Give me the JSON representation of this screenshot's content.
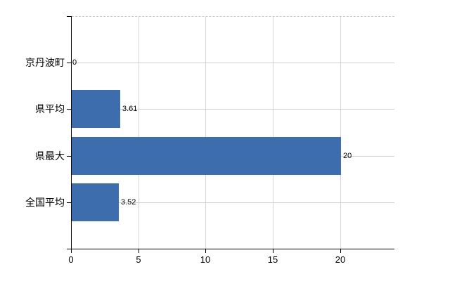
{
  "chart_data": {
    "type": "bar",
    "orientation": "horizontal",
    "title": "",
    "xlabel": "",
    "ylabel": "",
    "categories": [
      "京丹波町",
      "県平均",
      "県最大",
      "全国平均"
    ],
    "values": [
      0,
      3.61,
      20,
      3.52
    ],
    "value_labels": [
      "0",
      "3.61",
      "20",
      "3.52"
    ],
    "x_ticks": [
      0,
      5,
      10,
      15,
      20
    ],
    "x_tick_labels": [
      "0",
      "5",
      "10",
      "15",
      "20"
    ],
    "xlim": [
      0,
      24
    ],
    "grid": true,
    "legend": false,
    "colors": {
      "bar": "#3d6dac",
      "h_gridline": "#ccd4cb",
      "v_gridline": "#d6d6d6",
      "top_border": "#c9c9c9",
      "axis": "#000000",
      "text": "#000000",
      "background": "#ffffff"
    }
  }
}
